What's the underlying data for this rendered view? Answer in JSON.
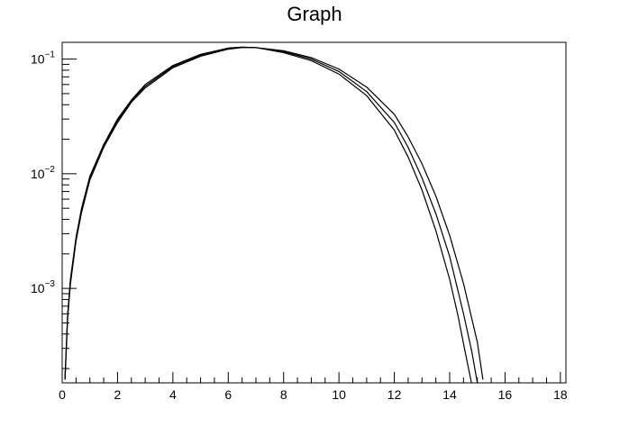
{
  "chart_data": {
    "type": "line",
    "title": "Graph",
    "xlabel": "",
    "ylabel": "",
    "yscale": "log",
    "xlim": [
      0,
      18.2
    ],
    "ylim": [
      0.00015,
      0.14
    ],
    "grid": false,
    "legend": "none",
    "x_tick_labels": [
      "0",
      "2",
      "4",
      "6",
      "8",
      "10",
      "12",
      "14",
      "16",
      "18"
    ],
    "y_tick_labels": [
      {
        "base": "10",
        "exp": "−3"
      },
      {
        "base": "10",
        "exp": "−2"
      },
      {
        "base": "10",
        "exp": "−1"
      }
    ],
    "series": [
      {
        "x": [
          0.1,
          0.2,
          0.3,
          0.5,
          0.7,
          1,
          1.5,
          2,
          2.5,
          3,
          4,
          5,
          6,
          6.5,
          7,
          8,
          9,
          10,
          11,
          12,
          12.5,
          13,
          13.5,
          14,
          14.3,
          14.6,
          14.8
        ],
        "y": [
          0.00016,
          0.0006,
          0.0012,
          0.0028,
          0.005,
          0.0095,
          0.018,
          0.03,
          0.044,
          0.06,
          0.088,
          0.11,
          0.125,
          0.127,
          0.126,
          0.114,
          0.097,
          0.074,
          0.048,
          0.024,
          0.014,
          0.0072,
          0.0032,
          0.0012,
          0.00058,
          0.00025,
          0.000145
        ]
      },
      {
        "x": [
          0.1,
          0.2,
          0.3,
          0.5,
          0.7,
          1,
          1.5,
          2,
          2.5,
          3,
          4,
          5,
          6,
          6.5,
          7,
          8,
          9,
          10,
          11,
          12,
          12.5,
          13,
          13.5,
          14,
          14.5,
          14.8,
          15
        ],
        "y": [
          0.00016,
          0.00058,
          0.0012,
          0.0027,
          0.0048,
          0.0092,
          0.0175,
          0.029,
          0.043,
          0.058,
          0.086,
          0.108,
          0.124,
          0.127,
          0.126,
          0.116,
          0.1,
          0.078,
          0.052,
          0.028,
          0.017,
          0.0092,
          0.0045,
          0.0019,
          0.0006,
          0.00028,
          0.00015
        ]
      },
      {
        "x": [
          0.1,
          0.2,
          0.3,
          0.5,
          0.7,
          1,
          1.5,
          2,
          2.5,
          3,
          4,
          5,
          6,
          6.5,
          7,
          8,
          9,
          10,
          11,
          12,
          12.5,
          13,
          13.5,
          14,
          14.5,
          15,
          15.2
        ],
        "y": [
          0.00016,
          0.00056,
          0.0011,
          0.0026,
          0.0046,
          0.0088,
          0.017,
          0.028,
          0.042,
          0.056,
          0.084,
          0.106,
          0.122,
          0.126,
          0.126,
          0.118,
          0.103,
          0.082,
          0.057,
          0.033,
          0.021,
          0.0122,
          0.0064,
          0.0029,
          0.0011,
          0.00034,
          0.00016
        ]
      }
    ]
  }
}
